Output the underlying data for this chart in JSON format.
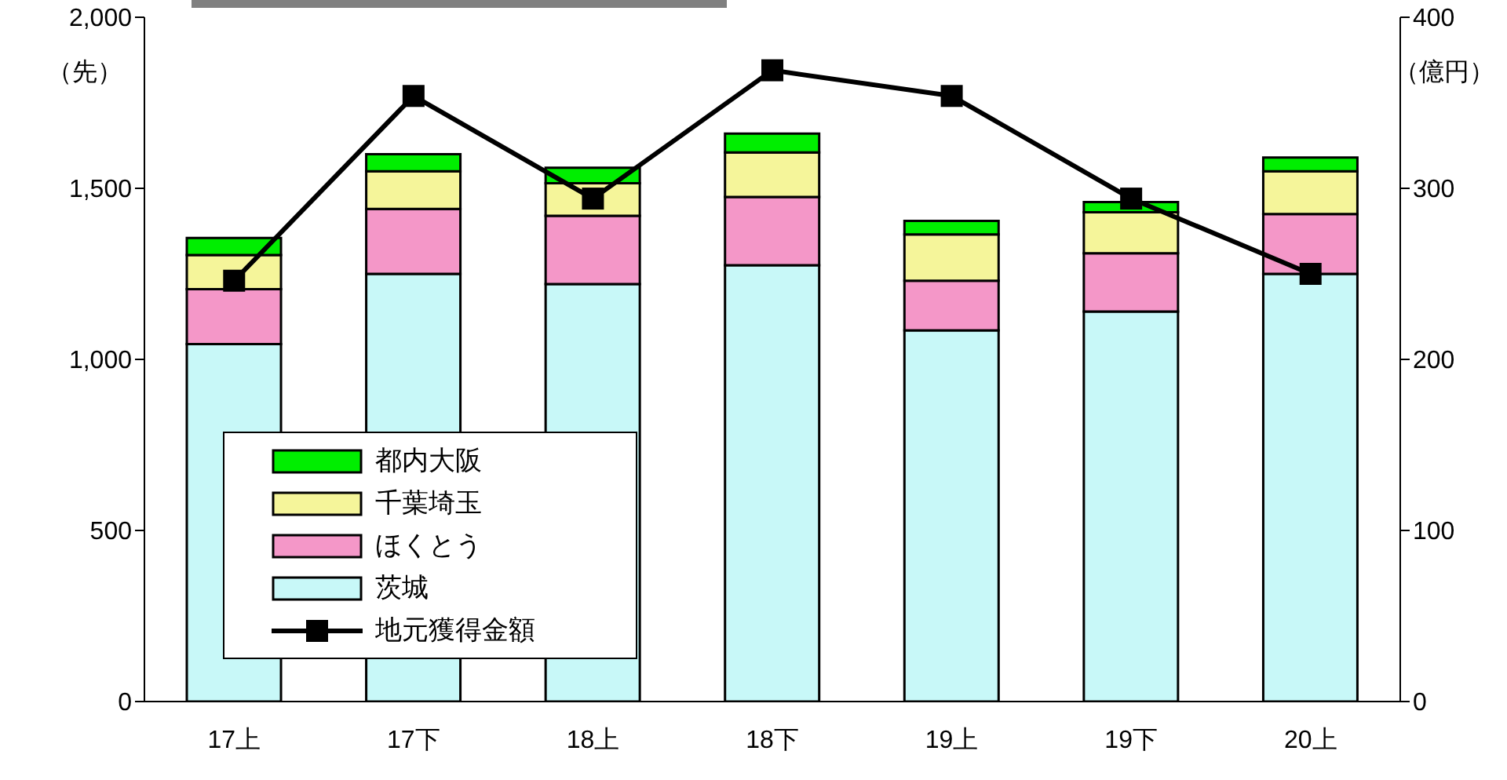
{
  "chart_data": {
    "type": "bar",
    "stacked": true,
    "categories": [
      "17上",
      "17下",
      "18上",
      "18下",
      "19上",
      "19下",
      "20上"
    ],
    "ylabel": "（先）",
    "y2label": "（億円）",
    "series": [
      {
        "name": "茨城",
        "color": "#c8f8f8",
        "values": [
          1045,
          1250,
          1220,
          1275,
          1085,
          1140,
          1250
        ]
      },
      {
        "name": "ほくとう",
        "color": "#f497c8",
        "values": [
          160,
          190,
          200,
          200,
          145,
          170,
          175
        ]
      },
      {
        "name": "千葉埼玉",
        "color": "#f5f59a",
        "values": [
          100,
          110,
          95,
          130,
          135,
          120,
          125
        ]
      },
      {
        "name": "都内大阪",
        "color": "#00ee00",
        "values": [
          50,
          50,
          45,
          55,
          40,
          30,
          40
        ]
      },
      {
        "name": "地元獲得金額",
        "type": "line",
        "axis": "y2",
        "color": "#000000",
        "marker": "square",
        "line_style": "solid",
        "values": [
          246,
          354,
          294,
          369,
          354,
          294,
          250
        ]
      }
    ],
    "ylim": [
      0,
      2000
    ],
    "yticks": [
      0,
      {
        "value": 500,
        "label": "500"
      },
      {
        "value": 1000,
        "label": "1,000"
      },
      {
        "value": 1500,
        "label": "1,500"
      },
      {
        "value": 2000,
        "label": "2,000"
      }
    ],
    "y2lim": [
      0,
      400
    ],
    "y2ticks": [
      0,
      100,
      200,
      300,
      400
    ],
    "grid": false,
    "legend": "bottom left"
  }
}
